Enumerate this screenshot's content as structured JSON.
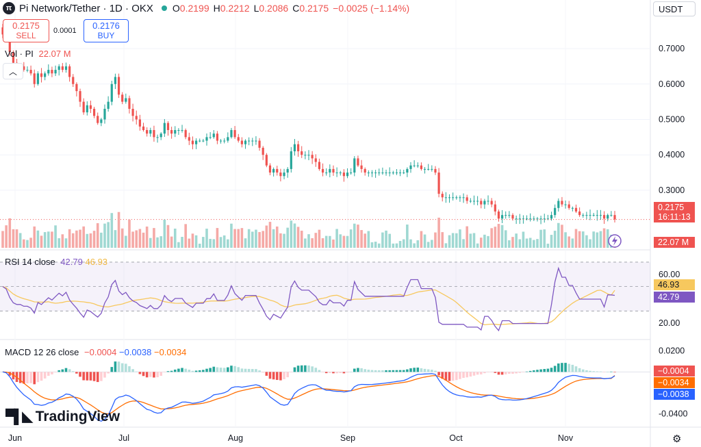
{
  "header": {
    "title": "Pi Network/Tether · 1D · OKX",
    "logo_icon": "pi-network-logo-icon",
    "o_label": "O",
    "o_value": "0.2199",
    "h_label": "H",
    "h_value": "0.2212",
    "l_label": "L",
    "l_value": "0.2086",
    "c_label": "C",
    "c_value": "0.2175",
    "change": "−0.0025 (−1.14%)"
  },
  "trade": {
    "sell_price": "0.2175",
    "sell_label": "SELL",
    "spread": "0.0001",
    "buy_price": "0.2176",
    "buy_label": "BUY"
  },
  "currency_select": "USDT",
  "volume": {
    "label": "Vol · PI",
    "value": "22.07 M",
    "tag": "22.07 M"
  },
  "price_tag": {
    "price": "0.2175",
    "countdown": "16:11:13"
  },
  "rsi": {
    "label": "RSI 14 close",
    "value": "42.79",
    "ma_value": "46.93"
  },
  "macd": {
    "label": "MACD 12 26 close",
    "hist": "−0.0004",
    "macd": "−0.0038",
    "signal": "−0.0034"
  },
  "branding": "TradingView",
  "colors": {
    "up": "#26a69a",
    "down": "#ef5350",
    "rsi_line": "#7e57c2",
    "rsi_ma": "#f7c85e",
    "macd_line": "#2962ff",
    "signal_line": "#ff6d00"
  },
  "chart_data": [
    {
      "type": "candlestick",
      "x_tick_labels": [
        "Jun",
        "Jul",
        "Aug",
        "Sep",
        "Oct",
        "Nov"
      ],
      "y_tick_labels": [
        "0.7000",
        "0.6000",
        "0.5000",
        "0.4000",
        "0.3000"
      ],
      "ylim": [
        0.18,
        0.76
      ],
      "close": [
        0.74,
        0.73,
        0.69,
        0.66,
        0.65,
        0.65,
        0.64,
        0.64,
        0.63,
        0.6,
        0.63,
        0.62,
        0.63,
        0.64,
        0.63,
        0.64,
        0.65,
        0.64,
        0.65,
        0.62,
        0.6,
        0.58,
        0.55,
        0.52,
        0.54,
        0.53,
        0.51,
        0.49,
        0.5,
        0.53,
        0.55,
        0.6,
        0.62,
        0.57,
        0.55,
        0.56,
        0.53,
        0.51,
        0.5,
        0.48,
        0.47,
        0.46,
        0.47,
        0.45,
        0.45,
        0.46,
        0.49,
        0.47,
        0.46,
        0.47,
        0.47,
        0.47,
        0.45,
        0.44,
        0.43,
        0.44,
        0.44,
        0.44,
        0.45,
        0.45,
        0.46,
        0.44,
        0.44,
        0.44,
        0.45,
        0.47,
        0.45,
        0.44,
        0.43,
        0.44,
        0.44,
        0.44,
        0.44,
        0.42,
        0.4,
        0.37,
        0.35,
        0.36,
        0.35,
        0.34,
        0.35,
        0.36,
        0.41,
        0.43,
        0.41,
        0.4,
        0.4,
        0.4,
        0.39,
        0.38,
        0.36,
        0.35,
        0.35,
        0.36,
        0.35,
        0.35,
        0.35,
        0.34,
        0.35,
        0.35,
        0.39,
        0.37,
        0.36,
        0.35,
        0.35,
        0.35,
        0.35,
        0.35,
        0.35,
        0.35,
        0.35,
        0.35,
        0.35,
        0.35,
        0.35,
        0.36,
        0.37,
        0.37,
        0.37,
        0.36,
        0.36,
        0.36,
        0.36,
        0.35,
        0.29,
        0.28,
        0.28,
        0.28,
        0.28,
        0.28,
        0.28,
        0.28,
        0.27,
        0.27,
        0.27,
        0.27,
        0.26,
        0.27,
        0.27,
        0.26,
        0.24,
        0.22,
        0.23,
        0.23,
        0.23,
        0.22,
        0.22,
        0.22,
        0.22,
        0.22,
        0.22,
        0.22,
        0.22,
        0.22,
        0.22,
        0.22,
        0.23,
        0.25,
        0.27,
        0.26,
        0.26,
        0.25,
        0.25,
        0.24,
        0.23,
        0.23,
        0.23,
        0.23,
        0.23,
        0.23,
        0.23,
        0.22,
        0.23,
        0.23,
        0.2175
      ],
      "series": [
        {
          "name": "Vol · PI",
          "panel": "volume",
          "last": 22.07
        },
        {
          "name": "RSI 14 close",
          "panel": "rsi",
          "ylim": [
            10,
            75
          ],
          "y_tick_labels": [
            "60.00",
            "20.00"
          ],
          "bands": [
            70,
            30
          ],
          "last": 42.79,
          "ma_last": 46.93
        },
        {
          "name": "MACD 12 26 close",
          "panel": "macd",
          "ylim": [
            -0.05,
            0.025
          ],
          "y_tick_labels": [
            "0.0200",
            "-0.0400"
          ],
          "macd_last": -0.0038,
          "signal_last": -0.0034,
          "hist_last": -0.0004
        }
      ]
    }
  ]
}
